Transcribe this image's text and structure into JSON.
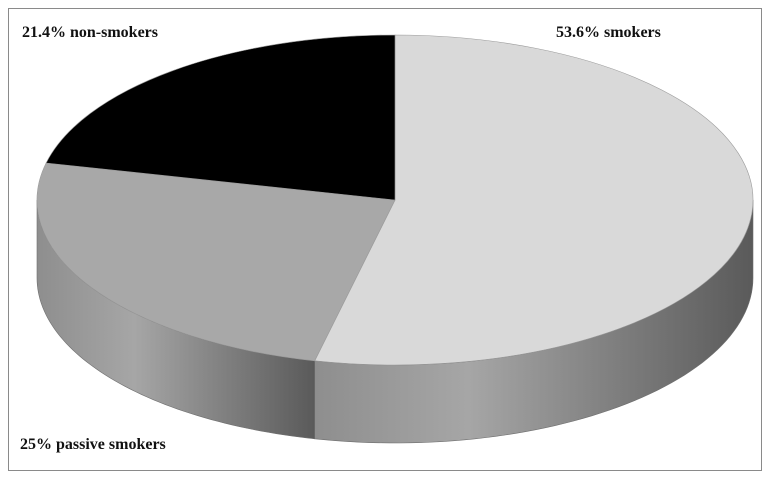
{
  "chart_data": {
    "type": "pie",
    "style": "3d",
    "categories": [
      "smokers",
      "passive smokers",
      "non-smokers"
    ],
    "values": [
      53.6,
      25,
      21.4
    ],
    "unit": "%",
    "labels": [
      "53.6% smokers",
      "25% passive smokers",
      "21.4% non-smokers"
    ],
    "colors": [
      "#d9d9d9",
      "#a8a8a8",
      "#000000"
    ],
    "title": "",
    "legend": "none"
  }
}
